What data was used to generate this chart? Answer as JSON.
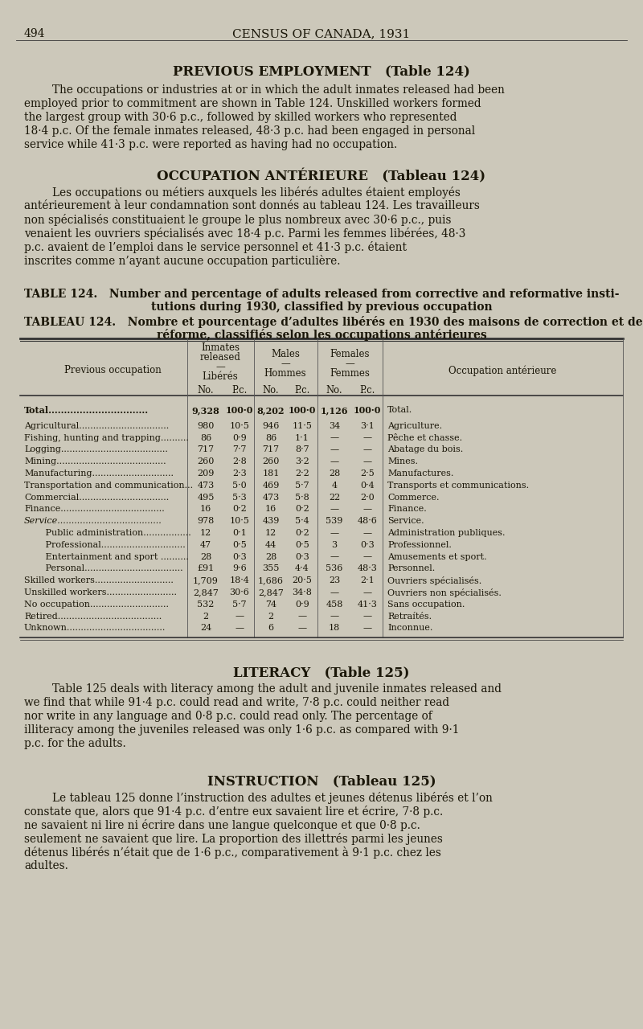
{
  "bg_color": "#ccc8ba",
  "page_number": "494",
  "header": "CENSUS OF CANADA, 1931",
  "section1_title": "PREVIOUS EMPLOYMENT",
  "section1_title_suffix": "(Table 124)",
  "section1_en": "The occupations or industries at or in which the adult inmates released had been employed prior to commitment are shown in Table 124.  Unskilled workers formed the largest group with 30·6 p.c., followed by skilled workers who represented 18·4 p.c.   Of the female inmates released, 48·3 p.c. had been engaged in personal service while 41·3 p.c. were reported as having had no occupation.",
  "section1_fr_title": "OCCUPATION ANTÉRIEURE",
  "section1_fr_title_suffix": "(Tableau 124)",
  "section1_fr": "Les occupations ou métiers auxquels les libérés adultes étaient employés antérieurement à leur condamnation sont donnés au tableau 124.   Les travailleurs non spécialisés constituaient le groupe le plus nombreux avec 30·6 p.c., puis venaient les ouvriers spécialisés avec 18·4 p.c.  Parmi les femmes libérées, 48·3 p.c. avaient de l’emploi dans le service personnel et 41·3 p.c. étaient inscrites comme n’ayant aucune occupation particulière.",
  "table_title_en_1": "TABLE 124.   Number and percentage of adults released from corrective and reformative insti-",
  "table_title_en_2": "tutions during 1930, classified by previous occupation",
  "table_title_fr_1": "TABLEAU 124.   Nombre et pourcentage d’adultes libérés en 1930 des maisons de correction et de",
  "table_title_fr_2": "réforme, classifiés selon les occupations antérieures",
  "rows": [
    {
      "label": "Total................................",
      "bold": true,
      "italic": false,
      "indent": 0,
      "in_no": "9,328",
      "in_pc": "100·0",
      "m_no": "8,202",
      "m_pc": "100·0",
      "f_no": "1,126",
      "f_pc": "100·0",
      "fr_label": "Total."
    },
    {
      "label": "Agricultural................................",
      "bold": false,
      "italic": false,
      "indent": 0,
      "in_no": "980",
      "in_pc": "10·5",
      "m_no": "946",
      "m_pc": "11·5",
      "f_no": "34",
      "f_pc": "3·1",
      "fr_label": "Agriculture."
    },
    {
      "label": "Fishing, hunting and trapping..........",
      "bold": false,
      "italic": false,
      "indent": 0,
      "in_no": "86",
      "in_pc": "0·9",
      "m_no": "86",
      "m_pc": "1·1",
      "f_no": "—",
      "f_pc": "—",
      "fr_label": "Pêche et chasse."
    },
    {
      "label": "Logging......................................",
      "bold": false,
      "italic": false,
      "indent": 0,
      "in_no": "717",
      "in_pc": "7·7",
      "m_no": "717",
      "m_pc": "8·7",
      "f_no": "—",
      "f_pc": "—",
      "fr_label": "Abatage du bois."
    },
    {
      "label": "Mining.......................................",
      "bold": false,
      "italic": false,
      "indent": 0,
      "in_no": "260",
      "in_pc": "2·8",
      "m_no": "260",
      "m_pc": "3·2",
      "f_no": "—",
      "f_pc": "—",
      "fr_label": "Mines."
    },
    {
      "label": "Manufacturing.............................",
      "bold": false,
      "italic": false,
      "indent": 0,
      "in_no": "209",
      "in_pc": "2·3",
      "m_no": "181",
      "m_pc": "2·2",
      "f_no": "28",
      "f_pc": "2·5",
      "fr_label": "Manufactures."
    },
    {
      "label": "Transportation and communication...",
      "bold": false,
      "italic": false,
      "indent": 0,
      "in_no": "473",
      "in_pc": "5·0",
      "m_no": "469",
      "m_pc": "5·7",
      "f_no": "4",
      "f_pc": "0·4",
      "fr_label": "Transports et communications."
    },
    {
      "label": "Commercial................................",
      "bold": false,
      "italic": false,
      "indent": 0,
      "in_no": "495",
      "in_pc": "5·3",
      "m_no": "473",
      "m_pc": "5·8",
      "f_no": "22",
      "f_pc": "2·0",
      "fr_label": "Commerce."
    },
    {
      "label": "Finance.....................................",
      "bold": false,
      "italic": false,
      "indent": 0,
      "in_no": "16",
      "in_pc": "0·2",
      "m_no": "16",
      "m_pc": "0·2",
      "f_no": "—",
      "f_pc": "—",
      "fr_label": "Finance."
    },
    {
      "label": "Service.....................................",
      "bold": false,
      "italic": true,
      "indent": 0,
      "in_no": "978",
      "in_pc": "10·5",
      "m_no": "439",
      "m_pc": "5·4",
      "f_no": "539",
      "f_pc": "48·6",
      "fr_label": "Service."
    },
    {
      "label": "   Public administration.................",
      "bold": false,
      "italic": false,
      "indent": 1,
      "in_no": "12",
      "in_pc": "0·1",
      "m_no": "12",
      "m_pc": "0·2",
      "f_no": "—",
      "f_pc": "—",
      "fr_label": "Administration publiques."
    },
    {
      "label": "   Professional..............................",
      "bold": false,
      "italic": false,
      "indent": 1,
      "in_no": "47",
      "in_pc": "0·5",
      "m_no": "44",
      "m_pc": "0·5",
      "f_no": "3",
      "f_pc": "0·3",
      "fr_label": "Professionnel."
    },
    {
      "label": "   Entertainment and sport ..........",
      "bold": false,
      "italic": false,
      "indent": 1,
      "in_no": "28",
      "in_pc": "0·3",
      "m_no": "28",
      "m_pc": "0·3",
      "f_no": "—",
      "f_pc": "—",
      "fr_label": "Amusements et sport."
    },
    {
      "label": "   Personal...................................",
      "bold": false,
      "italic": false,
      "indent": 1,
      "in_no": "£91",
      "in_pc": "9·6",
      "m_no": "355",
      "m_pc": "4·4",
      "f_no": "536",
      "f_pc": "48·3",
      "fr_label": "Personnel."
    },
    {
      "label": "Skilled workers............................",
      "bold": false,
      "italic": false,
      "indent": 0,
      "in_no": "1,709",
      "in_pc": "18·4",
      "m_no": "1,686",
      "m_pc": "20·5",
      "f_no": "23",
      "f_pc": "2·1",
      "fr_label": "Ouvriers spécialisés."
    },
    {
      "label": "Unskilled workers.........................",
      "bold": false,
      "italic": false,
      "indent": 0,
      "in_no": "2,847",
      "in_pc": "30·6",
      "m_no": "2,847",
      "m_pc": "34·8",
      "f_no": "—",
      "f_pc": "—",
      "fr_label": "Ouvriers non spécialisés."
    },
    {
      "label": "No occupation............................",
      "bold": false,
      "italic": false,
      "indent": 0,
      "in_no": "532",
      "in_pc": "5·7",
      "m_no": "74",
      "m_pc": "0·9",
      "f_no": "458",
      "f_pc": "41·3",
      "fr_label": "Sans occupation."
    },
    {
      "label": "Retired.....................................",
      "bold": false,
      "italic": false,
      "indent": 0,
      "in_no": "2",
      "in_pc": "—",
      "m_no": "2",
      "m_pc": "—",
      "f_no": "—",
      "f_pc": "—",
      "fr_label": "Retraítés."
    },
    {
      "label": "Unknown...................................",
      "bold": false,
      "italic": false,
      "indent": 0,
      "in_no": "24",
      "in_pc": "—",
      "m_no": "6",
      "m_pc": "—",
      "f_no": "18",
      "f_pc": "—",
      "fr_label": "Inconnue."
    }
  ],
  "section2_title": "LITERACY",
  "section2_title_suffix": "(Table 125)",
  "section2_en": "Table 125 deals with literacy among the adult and juvenile inmates released and we find that while 91·4 p.c. could read and write, 7·8 p.c. could neither read nor write in any language and 0·8 p.c. could read only.  The percentage of illiteracy among the juveniles released was only 1·6 p.c. as compared with 9·1 p.c. for the adults.",
  "section2_fr_title": "INSTRUCTION",
  "section2_fr_title_suffix": "(Tableau 125)",
  "section2_fr": "Le tableau 125 donne l’instruction des adultes et jeunes détenus libérés et l’on constate que, alors que 91·4 p.c. d’entre eux savaient lire et écrire, 7·8 p.c. ne savaient ni lire ni écrire dans une langue quelconque et que 0·8 p.c. seulement ne savaient que lire.  La proportion des illettrés parmi les jeunes détenus libérés n’était que de 1·6 p.c., comparativement à 9·1 p.c. chez les adultes."
}
